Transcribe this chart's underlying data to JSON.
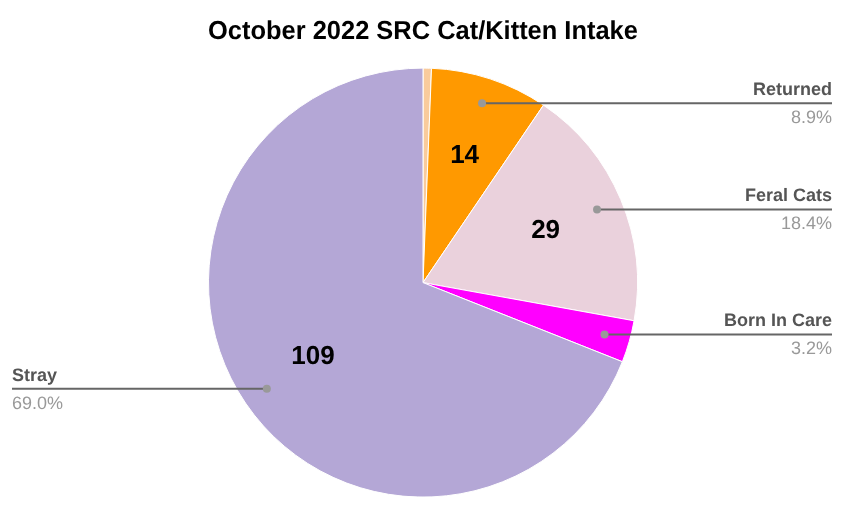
{
  "chart_data": {
    "type": "pie",
    "title": "October 2022 SRC Cat/Kitten Intake",
    "categories": [
      null,
      "Returned",
      "Feral Cats",
      "Born In Care",
      "Stray"
    ],
    "values": [
      1,
      14,
      29,
      5,
      109
    ],
    "value_labels": [
      null,
      "14",
      "29",
      null,
      "109"
    ],
    "colors": [
      "#f9cb9c",
      "#ff9900",
      "#ead1dc",
      "#ff00ff",
      "#b4a7d6"
    ],
    "annotations": [
      "8.9%",
      "18.4%",
      "3.2%",
      "69.0%"
    ],
    "legend": false
  }
}
